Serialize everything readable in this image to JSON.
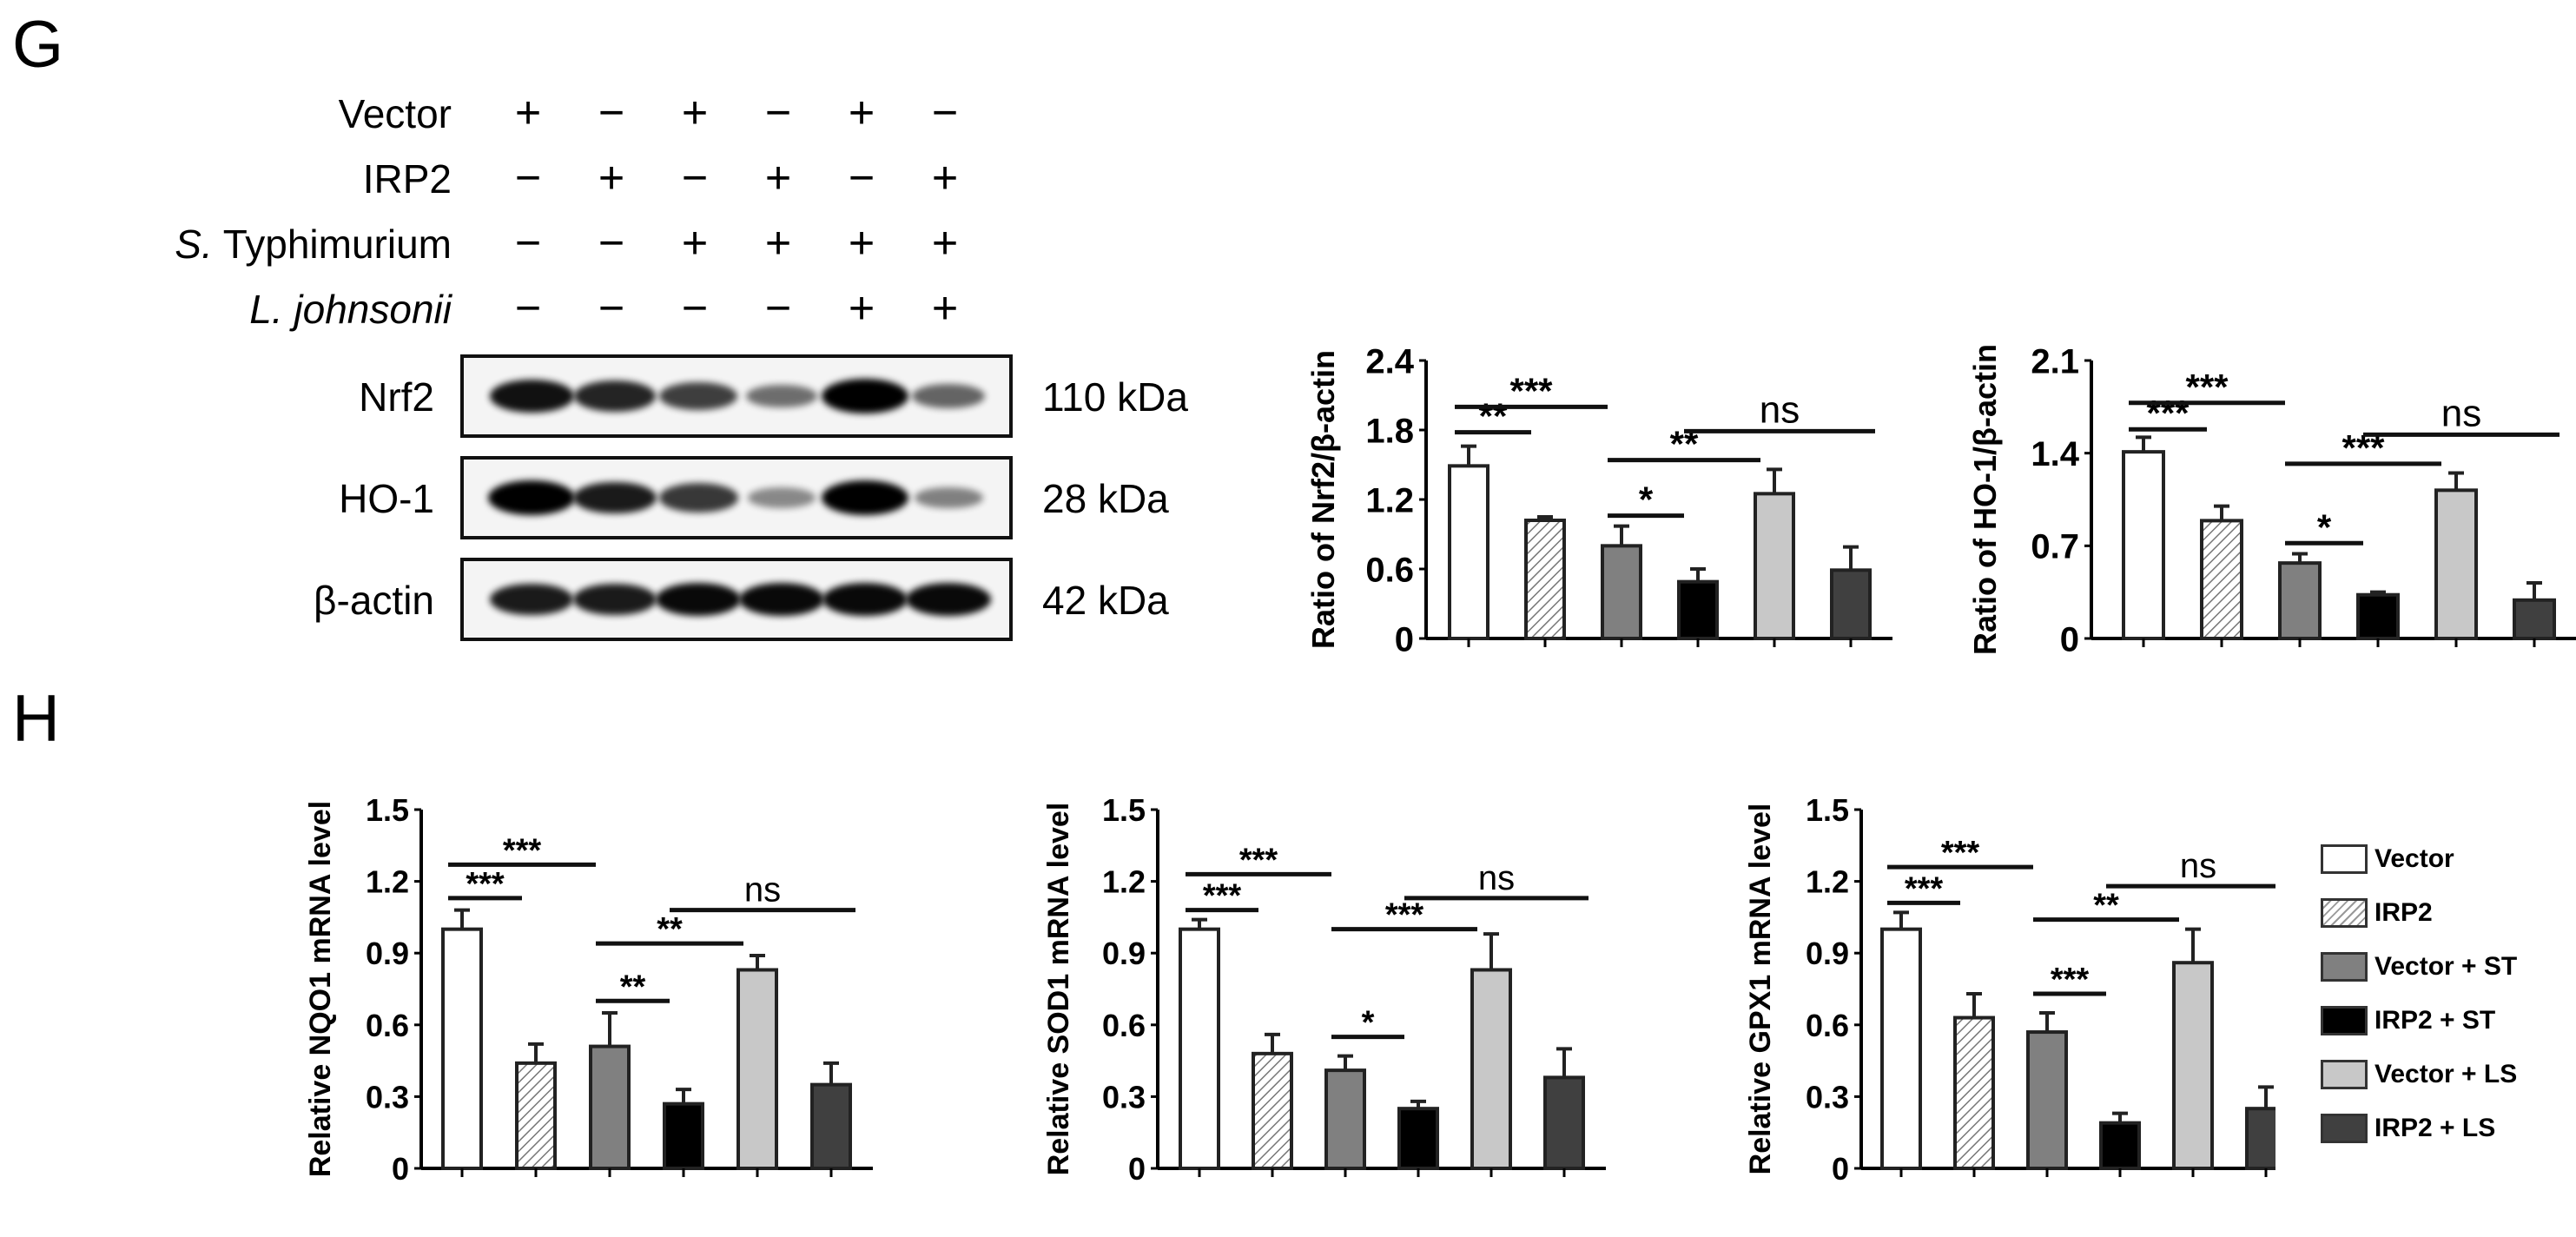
{
  "panels": {
    "G": {
      "letter": "G"
    },
    "H": {
      "letter": "H"
    }
  },
  "western_blot": {
    "conditions": [
      {
        "label_prefix": "",
        "label_italic": "",
        "label": "Vector",
        "signs": [
          "+",
          "−",
          "+",
          "−",
          "+",
          "−"
        ]
      },
      {
        "label_prefix": "",
        "label_italic": "",
        "label": "IRP2",
        "signs": [
          "−",
          "+",
          "−",
          "+",
          "−",
          "+"
        ]
      },
      {
        "label_prefix": "S.",
        "label_italic": "S.",
        "label": " Typhimurium",
        "signs": [
          "−",
          "−",
          "+",
          "+",
          "+",
          "+"
        ]
      },
      {
        "label_prefix": "L. johnsonii",
        "label_italic": "L. johnsonii",
        "label": "",
        "signs": [
          "−",
          "−",
          "−",
          "−",
          "+",
          "+"
        ]
      }
    ],
    "blots": [
      {
        "protein": "Nrf2",
        "kda": "110 kDa",
        "intensity": [
          0.9,
          0.8,
          0.65,
          0.4,
          1.0,
          0.45
        ]
      },
      {
        "protein": "HO-1",
        "kda": "28 kDa",
        "intensity": [
          1.0,
          0.85,
          0.7,
          0.25,
          1.0,
          0.3
        ]
      },
      {
        "protein": "β-actin",
        "kda": "42 kDa",
        "intensity": [
          0.85,
          0.85,
          0.95,
          0.95,
          0.95,
          0.95
        ]
      }
    ]
  },
  "legend": {
    "items": [
      {
        "label": "Vector",
        "fill": "#ffffff",
        "pattern": "none"
      },
      {
        "label": "IRP2",
        "fill": "#ffffff",
        "pattern": "hatch"
      },
      {
        "label": "Vector + ST",
        "fill": "#808080",
        "pattern": "none"
      },
      {
        "label": "IRP2 + ST",
        "fill": "#000000",
        "pattern": "none"
      },
      {
        "label": "Vector + LS",
        "fill": "#c8c8c8",
        "pattern": "none"
      },
      {
        "label": "IRP2 + LS",
        "fill": "#404040",
        "pattern": "none"
      }
    ]
  },
  "chart_data": [
    {
      "id": "nrf2",
      "type": "bar",
      "title": "",
      "ylabel": "Ratio of Nrf2/β-actin",
      "xlabel": "",
      "ylim": [
        0,
        2.4
      ],
      "yticks": [
        "0",
        "0.6",
        "1.2",
        "1.8",
        "2.4"
      ],
      "ytick_values": [
        0,
        0.6,
        1.2,
        1.8,
        2.4
      ],
      "categories": [
        "Vector",
        "IRP2",
        "Vector + ST",
        "IRP2 + ST",
        "Vector + LS",
        "IRP2 + LS"
      ],
      "values": [
        1.49,
        1.02,
        0.8,
        0.49,
        1.25,
        0.59
      ],
      "errors": [
        0.17,
        0.03,
        0.17,
        0.11,
        0.21,
        0.2
      ],
      "annotations": [
        {
          "from": 0,
          "to": 1,
          "y": 1.78,
          "text": "**"
        },
        {
          "from": 0,
          "to": 2,
          "y": 2.0,
          "text": "***"
        },
        {
          "from": 2,
          "to": 3,
          "y": 1.06,
          "text": "*"
        },
        {
          "from": 2,
          "to": 4,
          "y": 1.54,
          "text": "**"
        },
        {
          "from": 3,
          "to": 5,
          "y": 1.79,
          "text": "ns"
        }
      ],
      "grid": false,
      "legend_position": "none"
    },
    {
      "id": "ho1",
      "type": "bar",
      "title": "",
      "ylabel": "Ratio of HO-1/β-actin",
      "xlabel": "",
      "ylim": [
        0,
        2.1
      ],
      "yticks": [
        "0",
        "0.7",
        "1.4",
        "2.1"
      ],
      "ytick_values": [
        0,
        0.7,
        1.4,
        2.1
      ],
      "categories": [
        "Vector",
        "IRP2",
        "Vector + ST",
        "IRP2 + ST",
        "Vector + LS",
        "IRP2 + LS"
      ],
      "values": [
        1.41,
        0.89,
        0.57,
        0.33,
        1.12,
        0.29
      ],
      "errors": [
        0.11,
        0.11,
        0.07,
        0.02,
        0.13,
        0.13
      ],
      "annotations": [
        {
          "from": 0,
          "to": 1,
          "y": 1.58,
          "text": "***"
        },
        {
          "from": 0,
          "to": 2,
          "y": 1.78,
          "text": "***"
        },
        {
          "from": 2,
          "to": 3,
          "y": 0.72,
          "text": "*"
        },
        {
          "from": 2,
          "to": 4,
          "y": 1.32,
          "text": "***"
        },
        {
          "from": 3,
          "to": 5,
          "y": 1.54,
          "text": "ns"
        }
      ],
      "grid": false,
      "legend_position": "none"
    },
    {
      "id": "nqo1",
      "type": "bar",
      "title": "",
      "ylabel": "Relative NQO1 mRNA level",
      "xlabel": "",
      "ylim": [
        0,
        1.5
      ],
      "yticks": [
        "0",
        "0.3",
        "0.6",
        "0.9",
        "1.2",
        "1.5"
      ],
      "ytick_values": [
        0,
        0.3,
        0.6,
        0.9,
        1.2,
        1.5
      ],
      "categories": [
        "Vector",
        "IRP2",
        "Vector + ST",
        "IRP2 + ST",
        "Vector + LS",
        "IRP2 + LS"
      ],
      "values": [
        1.0,
        0.44,
        0.51,
        0.27,
        0.83,
        0.35
      ],
      "errors": [
        0.08,
        0.08,
        0.14,
        0.06,
        0.06,
        0.09
      ],
      "annotations": [
        {
          "from": 0,
          "to": 1,
          "y": 1.13,
          "text": "***"
        },
        {
          "from": 0,
          "to": 2,
          "y": 1.27,
          "text": "***"
        },
        {
          "from": 2,
          "to": 3,
          "y": 0.7,
          "text": "**"
        },
        {
          "from": 2,
          "to": 4,
          "y": 0.94,
          "text": "**"
        },
        {
          "from": 3,
          "to": 5,
          "y": 1.08,
          "text": "ns"
        }
      ],
      "grid": false,
      "legend_position": "none"
    },
    {
      "id": "sod1",
      "type": "bar",
      "title": "",
      "ylabel": "Relative SOD1 mRNA level",
      "xlabel": "",
      "ylim": [
        0,
        1.5
      ],
      "yticks": [
        "0",
        "0.3",
        "0.6",
        "0.9",
        "1.2",
        "1.5"
      ],
      "ytick_values": [
        0,
        0.3,
        0.6,
        0.9,
        1.2,
        1.5
      ],
      "categories": [
        "Vector",
        "IRP2",
        "Vector + ST",
        "IRP2 + ST",
        "Vector + LS",
        "IRP2 + LS"
      ],
      "values": [
        1.0,
        0.48,
        0.41,
        0.25,
        0.83,
        0.38
      ],
      "errors": [
        0.04,
        0.08,
        0.06,
        0.03,
        0.15,
        0.12
      ],
      "annotations": [
        {
          "from": 0,
          "to": 1,
          "y": 1.08,
          "text": "***"
        },
        {
          "from": 0,
          "to": 2,
          "y": 1.23,
          "text": "***"
        },
        {
          "from": 2,
          "to": 3,
          "y": 0.55,
          "text": "*"
        },
        {
          "from": 2,
          "to": 4,
          "y": 1.0,
          "text": "***"
        },
        {
          "from": 3,
          "to": 5,
          "y": 1.13,
          "text": "ns"
        }
      ],
      "grid": false,
      "legend_position": "none"
    },
    {
      "id": "gpx1",
      "type": "bar",
      "title": "",
      "ylabel": "Relative GPX1 mRNA level",
      "xlabel": "",
      "ylim": [
        0,
        1.5
      ],
      "yticks": [
        "0",
        "0.3",
        "0.6",
        "0.9",
        "1.2",
        "1.5"
      ],
      "ytick_values": [
        0,
        0.3,
        0.6,
        0.9,
        1.2,
        1.5
      ],
      "categories": [
        "Vector",
        "IRP2",
        "Vector + ST",
        "IRP2 + ST",
        "Vector + LS",
        "IRP2 + LS"
      ],
      "values": [
        1.0,
        0.63,
        0.57,
        0.19,
        0.86,
        0.25
      ],
      "errors": [
        0.07,
        0.1,
        0.08,
        0.04,
        0.14,
        0.09
      ],
      "annotations": [
        {
          "from": 0,
          "to": 1,
          "y": 1.11,
          "text": "***"
        },
        {
          "from": 0,
          "to": 2,
          "y": 1.26,
          "text": "***"
        },
        {
          "from": 2,
          "to": 3,
          "y": 0.73,
          "text": "***"
        },
        {
          "from": 2,
          "to": 4,
          "y": 1.04,
          "text": "**"
        },
        {
          "from": 3,
          "to": 5,
          "y": 1.18,
          "text": "ns"
        }
      ],
      "grid": false,
      "legend_position": "right"
    }
  ]
}
